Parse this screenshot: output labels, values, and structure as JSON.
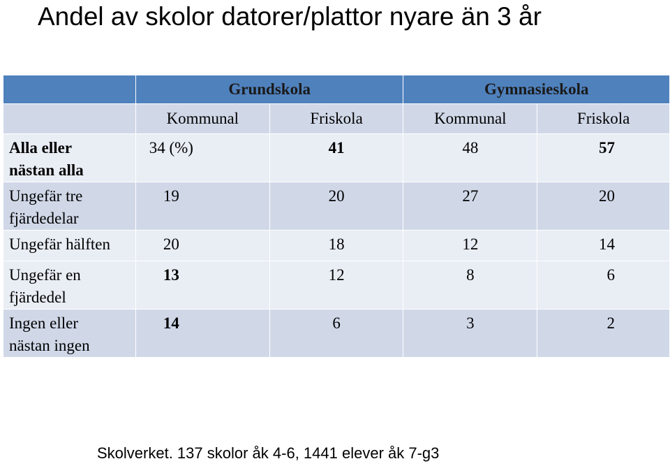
{
  "title": "Andel av skolor datorer/plattor nyare än 3 år",
  "table": {
    "group_headers": [
      "Grundskola",
      "Gymnasieskola"
    ],
    "sub_headers": [
      "Kommunal",
      "Friskola",
      "Kommunal",
      "Friskola"
    ],
    "rows": [
      {
        "label": "Alla eller\nnästan alla",
        "label_bold": true,
        "cells": [
          "34 (%)",
          "41",
          "48",
          "57"
        ],
        "bold": [
          false,
          true,
          false,
          true
        ]
      },
      {
        "label": "Ungefär tre\nfjärdedelar",
        "label_bold": false,
        "cells": [
          "19",
          "20",
          "27",
          "20"
        ],
        "bold": [
          false,
          false,
          false,
          false
        ]
      },
      {
        "label": "Ungefär hälften",
        "label_bold": false,
        "cells": [
          "20",
          "18",
          "12",
          "14"
        ],
        "bold": [
          false,
          false,
          false,
          false
        ]
      },
      {
        "label": "Ungefär en\nfjärdedel",
        "label_bold": false,
        "cells": [
          "13",
          "12",
          "8",
          "6"
        ],
        "bold": [
          true,
          false,
          false,
          false
        ]
      },
      {
        "label": "Ingen eller\nnästan ingen",
        "label_bold": false,
        "cells": [
          "14",
          "6",
          "3",
          "2"
        ],
        "bold": [
          true,
          false,
          false,
          false
        ]
      }
    ]
  },
  "source": "Skolverket. 137 skolor åk 4-6, 1441 elever åk 7-g3",
  "colors": {
    "header": "#4f81bd",
    "band_dark": "#d0d8e8",
    "band_light": "#e9edf4"
  }
}
